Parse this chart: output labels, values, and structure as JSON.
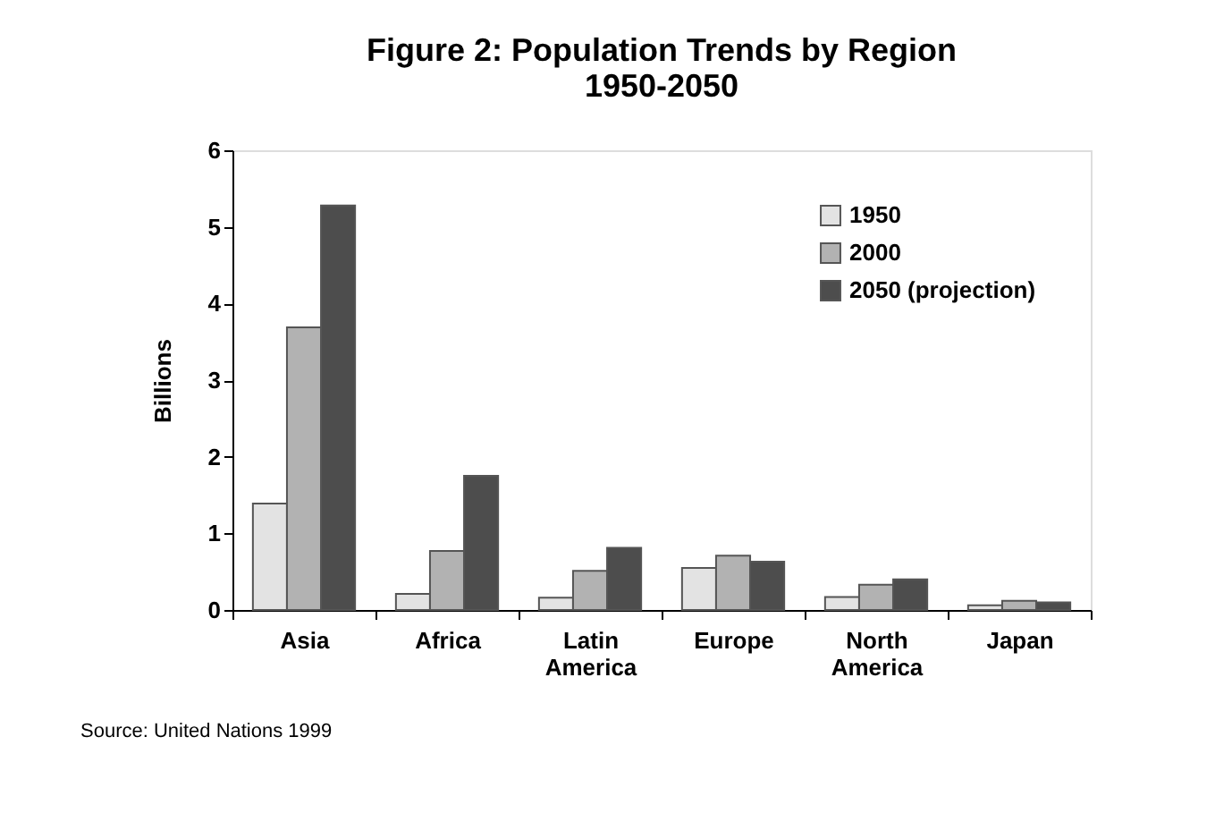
{
  "chart_data": {
    "type": "bar",
    "title": [
      "Figure 2:  Population Trends by Region",
      "1950-2050"
    ],
    "ylabel": "Billions",
    "categories": [
      "Asia",
      "Africa",
      "Latin America",
      "Europe",
      "North America",
      "Japan"
    ],
    "series": [
      {
        "name": "1950",
        "color": "#e3e3e3",
        "values": [
          1.39,
          0.21,
          0.16,
          0.55,
          0.17,
          0.06
        ]
      },
      {
        "name": "2000",
        "color": "#b2b2b2",
        "values": [
          3.69,
          0.77,
          0.51,
          0.71,
          0.33,
          0.12
        ]
      },
      {
        "name": "2050 (projection)",
        "color": "#4d4d4d",
        "values": [
          5.28,
          1.75,
          0.81,
          0.63,
          0.4,
          0.1
        ]
      }
    ],
    "ylim": [
      0,
      6
    ],
    "yticks": [
      0,
      1,
      2,
      3,
      4,
      5,
      6
    ],
    "grid": false,
    "legend": "top right",
    "annotations": [
      "Source: United Nations 1999"
    ]
  }
}
